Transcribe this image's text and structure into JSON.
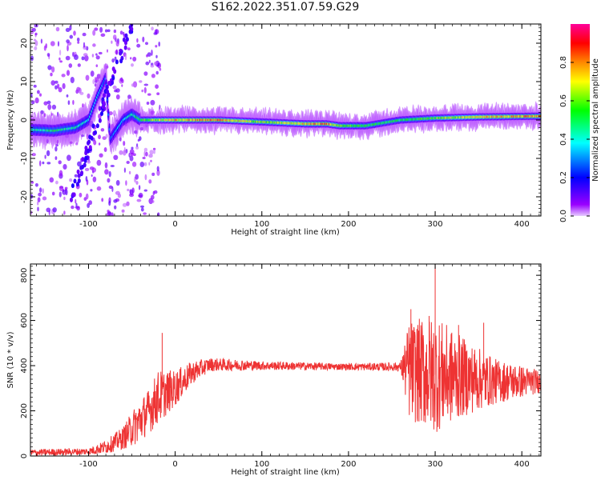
{
  "page_title": "S162.2022.351.07.59.G29",
  "chart_data": [
    {
      "type": "heatmap",
      "title": "S162.2022.351.07.59.G29",
      "xlabel": "Height of straight line (km)",
      "ylabel": "Frequency (Hz)",
      "xlim": [
        -167,
        422
      ],
      "ylim": [
        -25,
        25
      ],
      "x_ticks": [
        -100,
        0,
        100,
        200,
        300,
        400
      ],
      "y_ticks": [
        -20,
        -10,
        0,
        10,
        20
      ],
      "colorbar": {
        "label": "Normalized spectral amplitude",
        "range": [
          0,
          1
        ],
        "ticks": [
          0.0,
          0.2,
          0.4,
          0.6,
          0.8
        ],
        "colormap": [
          "#e6ccff",
          "#9900ff",
          "#0000ff",
          "#00ffff",
          "#00ff00",
          "#ffff00",
          "#ff8800",
          "#ff0000",
          "#ff0099"
        ]
      },
      "ridge": [
        {
          "x": -167,
          "freq": -2.5,
          "amp": 0.45
        },
        {
          "x": -140,
          "freq": -2.8,
          "amp": 0.5
        },
        {
          "x": -115,
          "freq": -2.0,
          "amp": 0.45
        },
        {
          "x": -100,
          "freq": 0,
          "amp": 0.4
        },
        {
          "x": -90,
          "freq": 6,
          "amp": 0.4
        },
        {
          "x": -80,
          "freq": 11,
          "amp": 0.3
        },
        {
          "x": -75,
          "freq": -5,
          "amp": 0.3
        },
        {
          "x": -60,
          "freq": 0,
          "amp": 0.4
        },
        {
          "x": -50,
          "freq": 1.5,
          "amp": 0.45
        },
        {
          "x": -40,
          "freq": 0,
          "amp": 0.55
        },
        {
          "x": 0,
          "freq": 0,
          "amp": 0.75
        },
        {
          "x": 50,
          "freq": 0,
          "amp": 0.8
        },
        {
          "x": 100,
          "freq": -0.5,
          "amp": 0.6
        },
        {
          "x": 150,
          "freq": -1,
          "amp": 0.75
        },
        {
          "x": 175,
          "freq": -1,
          "amp": 0.8
        },
        {
          "x": 190,
          "freq": -1.5,
          "amp": 0.6
        },
        {
          "x": 220,
          "freq": -1.5,
          "amp": 0.55
        },
        {
          "x": 260,
          "freq": 0,
          "amp": 0.5
        },
        {
          "x": 300,
          "freq": 0.5,
          "amp": 0.6
        },
        {
          "x": 350,
          "freq": 0.8,
          "amp": 0.75
        },
        {
          "x": 422,
          "freq": 1,
          "amp": 0.8
        }
      ]
    },
    {
      "type": "line",
      "xlabel": "Height of straight line (km)",
      "ylabel": "SNR (10 * v/v)",
      "xlim": [
        -167,
        422
      ],
      "ylim": [
        0,
        850
      ],
      "x_ticks": [
        -100,
        0,
        100,
        200,
        300,
        400
      ],
      "y_ticks": [
        0,
        200,
        400,
        600,
        800
      ],
      "color": "#ee3333",
      "envelope": [
        {
          "x": -167,
          "mean": 15,
          "amp": 15
        },
        {
          "x": -100,
          "mean": 20,
          "amp": 15
        },
        {
          "x": -80,
          "mean": 40,
          "amp": 30
        },
        {
          "x": -60,
          "mean": 80,
          "amp": 50
        },
        {
          "x": -45,
          "mean": 140,
          "amp": 90
        },
        {
          "x": -30,
          "mean": 200,
          "amp": 100
        },
        {
          "x": -20,
          "mean": 260,
          "amp": 120
        },
        {
          "x": 0,
          "mean": 300,
          "amp": 80
        },
        {
          "x": 20,
          "mean": 370,
          "amp": 50
        },
        {
          "x": 40,
          "mean": 405,
          "amp": 30
        },
        {
          "x": 100,
          "mean": 400,
          "amp": 20
        },
        {
          "x": 200,
          "mean": 395,
          "amp": 15
        },
        {
          "x": 260,
          "mean": 395,
          "amp": 20
        },
        {
          "x": 270,
          "mean": 380,
          "amp": 220
        },
        {
          "x": 300,
          "mean": 360,
          "amp": 260
        },
        {
          "x": 330,
          "mean": 350,
          "amp": 180
        },
        {
          "x": 370,
          "mean": 330,
          "amp": 100
        },
        {
          "x": 422,
          "mean": 330,
          "amp": 50
        }
      ],
      "peaks": [
        {
          "x": -15,
          "y": 545
        },
        {
          "x": 272,
          "y": 650
        },
        {
          "x": 300,
          "y": 845
        },
        {
          "x": 293,
          "y": 620
        },
        {
          "x": 327,
          "y": 580
        },
        {
          "x": 356,
          "y": 590
        }
      ]
    }
  ]
}
